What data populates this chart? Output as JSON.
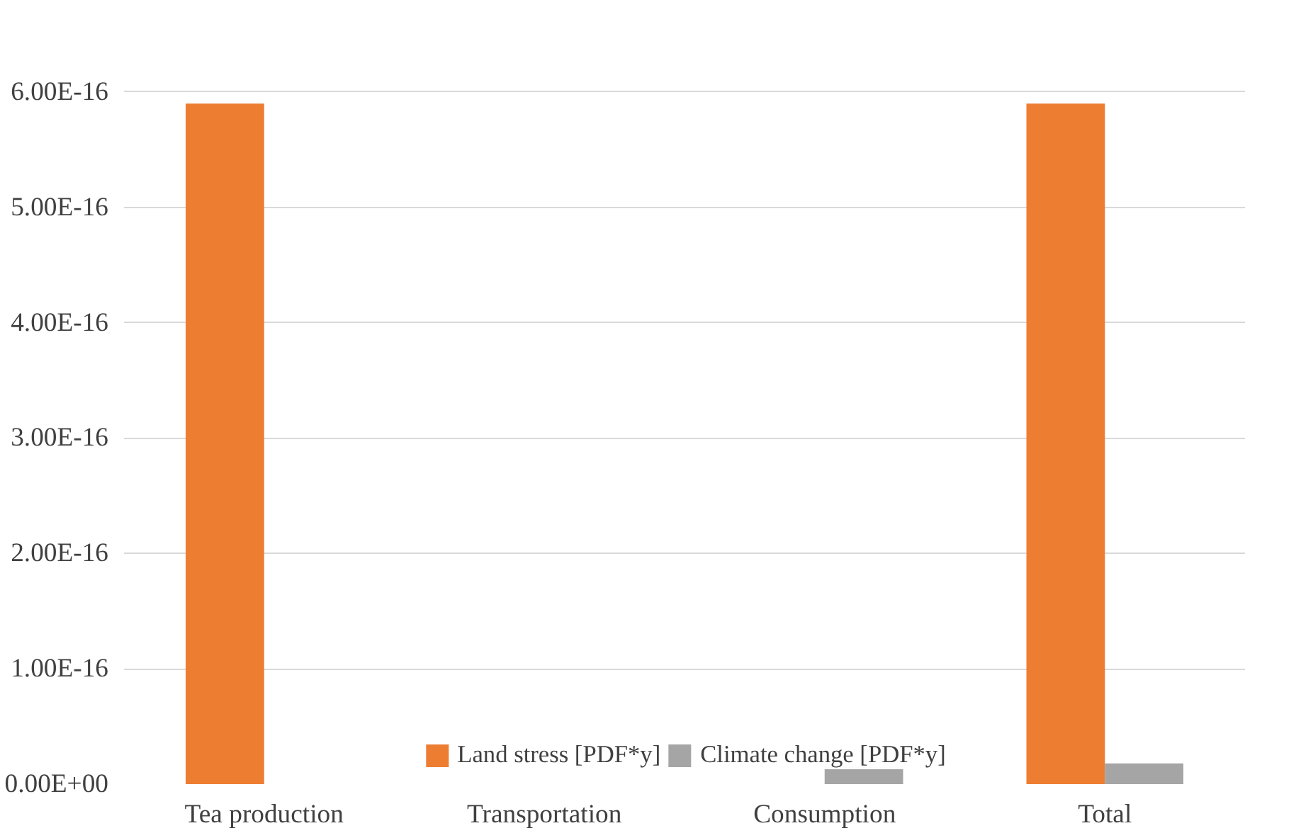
{
  "chart_data": {
    "type": "bar",
    "categories": [
      "Tea production",
      "Transportation",
      "Consumption",
      "Total"
    ],
    "series": [
      {
        "name": "Land stress [PDF*y]",
        "color": "#ed7d31",
        "values": [
          5.9e-16,
          0,
          0,
          5.9e-16
        ]
      },
      {
        "name": "Climate change [PDF*y]",
        "color": "#a5a5a5",
        "values": [
          0,
          0,
          1.5e-17,
          1.8e-17
        ]
      }
    ],
    "ylim": [
      0,
      6.3e-16
    ],
    "yticks": [
      {
        "value": 0,
        "label": "0.00E+00"
      },
      {
        "value": 1e-16,
        "label": "1.00E-16"
      },
      {
        "value": 2e-16,
        "label": "2.00E-16"
      },
      {
        "value": 3e-16,
        "label": "3.00E-16"
      },
      {
        "value": 4e-16,
        "label": "4.00E-16"
      },
      {
        "value": 5e-16,
        "label": "5.00E-16"
      },
      {
        "value": 6e-16,
        "label": "6.00E-16"
      }
    ],
    "grid": "y",
    "legend": "bottom"
  }
}
